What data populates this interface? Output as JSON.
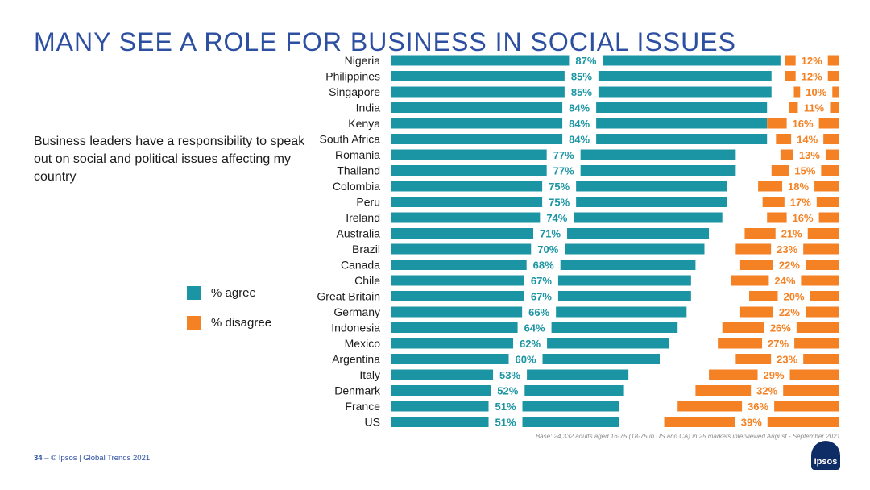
{
  "title": "MANY SEE A ROLE FOR BUSINESS IN SOCIAL ISSUES",
  "statement": "Business leaders have a responsibility to speak out on social and political issues affecting my country",
  "colors": {
    "agree": "#1b95a3",
    "disagree": "#f48225",
    "title": "#2d4fa2"
  },
  "chart_data": {
    "type": "bar",
    "orientation": "horizontal-diverging",
    "title": "MANY SEE A ROLE FOR BUSINESS IN SOCIAL ISSUES",
    "categories": [
      "Nigeria",
      "Philippines",
      "Singapore",
      "India",
      "Kenya",
      "South Africa",
      "Romania",
      "Thailand",
      "Colombia",
      "Peru",
      "Ireland",
      "Australia",
      "Brazil",
      "Canada",
      "Chile",
      "Great Britain",
      "Germany",
      "Indonesia",
      "Mexico",
      "Argentina",
      "Italy",
      "Denmark",
      "France",
      "US"
    ],
    "series": [
      {
        "name": "% agree",
        "values": [
          87,
          85,
          85,
          84,
          84,
          84,
          77,
          77,
          75,
          75,
          74,
          71,
          70,
          68,
          67,
          67,
          66,
          64,
          62,
          60,
          53,
          52,
          51,
          51
        ]
      },
      {
        "name": "% disagree",
        "values": [
          12,
          12,
          10,
          11,
          16,
          14,
          13,
          15,
          18,
          17,
          16,
          21,
          23,
          22,
          24,
          20,
          22,
          26,
          27,
          23,
          29,
          32,
          36,
          39
        ]
      }
    ],
    "labels_agree": [
      "87%",
      "85%",
      "85%",
      "84%",
      "84%",
      "84%",
      "77%",
      "77%",
      "75%",
      "75%",
      "74%",
      "71%",
      "70%",
      "68%",
      "67%",
      "67%",
      "66%",
      "64%",
      "62%",
      "60%",
      "53%",
      "52%",
      "51%",
      "51%"
    ],
    "labels_disagree": [
      "12%",
      "12%",
      "10%",
      "11%",
      "16%",
      "14%",
      "13%",
      "15%",
      "18%",
      "17%",
      "16%",
      "21%",
      "23%",
      "22%",
      "24%",
      "20%",
      "22%",
      "26%",
      "27%",
      "23%",
      "29%",
      "32%",
      "36%",
      "39%"
    ],
    "xlim": [
      0,
      100
    ],
    "legend": [
      "% agree",
      "% disagree"
    ]
  },
  "legend": {
    "agree_label": "% agree",
    "disagree_label": "% disagree"
  },
  "base_note": "Base: 24,332 adults aged 16-75 (18-75 in US and CA) in 25 markets interviewed August - September 2021",
  "footer": {
    "page_number": "34",
    "separator": " – ",
    "credit": "© Ipsos | Global Trends 2021"
  },
  "logo_text": "Ipsos"
}
